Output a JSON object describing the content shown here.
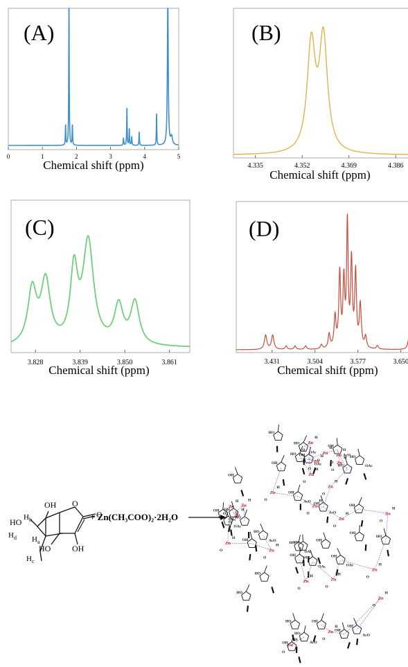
{
  "colors": {
    "A": "#3d8fd0",
    "B": "#e0b24a",
    "C": "#6fcf7a",
    "D": "#c94a3a",
    "frame": "#9a9a9a",
    "zn": "#cc2222",
    "ink": "#111111"
  },
  "chart_data": [
    {
      "panel": "A",
      "type": "line",
      "title": "(A)",
      "xlabel": "Chemical shift (ppm)",
      "ylabel": "",
      "xlim": [
        0,
        5
      ],
      "ylim": [
        0,
        1
      ],
      "xticks": [
        "0",
        "1",
        "2",
        "3",
        "4",
        "5"
      ],
      "xtick_values": [
        0,
        1,
        2,
        3,
        4,
        5
      ],
      "grid": false,
      "peaks": [
        {
          "x": 1.68,
          "h": 0.15,
          "w": 0.008
        },
        {
          "x": 1.78,
          "h": 1.1,
          "w": 0.008
        },
        {
          "x": 1.88,
          "h": 0.15,
          "w": 0.008
        },
        {
          "x": 3.38,
          "h": 0.05,
          "w": 0.01
        },
        {
          "x": 3.48,
          "h": 0.28,
          "w": 0.008
        },
        {
          "x": 3.55,
          "h": 0.12,
          "w": 0.008
        },
        {
          "x": 3.62,
          "h": 0.06,
          "w": 0.01
        },
        {
          "x": 3.84,
          "h": 0.1,
          "w": 0.008
        },
        {
          "x": 4.35,
          "h": 0.23,
          "w": 0.008
        },
        {
          "x": 4.68,
          "h": 1.1,
          "w": 0.015
        },
        {
          "x": 4.79,
          "h": 0.06,
          "w": 0.03
        }
      ]
    },
    {
      "panel": "B",
      "type": "line",
      "title": "(B)",
      "xlabel": "Chemical shift (ppm)",
      "ylabel": "",
      "xlim": [
        4.327,
        4.395
      ],
      "ylim": [
        0,
        1
      ],
      "xticks": [
        "4.335",
        "4.352",
        "4.369",
        "4.386"
      ],
      "xtick_values": [
        4.335,
        4.352,
        4.369,
        4.386
      ],
      "grid": false,
      "peaks": [
        {
          "x": 4.3553,
          "h": 0.7,
          "w": 0.0018
        },
        {
          "x": 4.3597,
          "h": 0.74,
          "w": 0.0018
        }
      ]
    },
    {
      "panel": "C",
      "type": "line",
      "title": "(C)",
      "xlabel": "Chemical shift (ppm)",
      "ylabel": "",
      "xlim": [
        3.822,
        3.866
      ],
      "ylim": [
        0,
        1
      ],
      "xticks": [
        "3.828",
        "3.839",
        "3.850",
        "3.861"
      ],
      "xtick_values": [
        3.828,
        3.839,
        3.85,
        3.861
      ],
      "grid": false,
      "peaks": [
        {
          "x": 3.8272,
          "h": 0.38,
          "w": 0.0013
        },
        {
          "x": 3.8305,
          "h": 0.44,
          "w": 0.0014
        },
        {
          "x": 3.8375,
          "h": 0.5,
          "w": 0.0011
        },
        {
          "x": 3.841,
          "h": 0.72,
          "w": 0.0016
        },
        {
          "x": 3.8485,
          "h": 0.27,
          "w": 0.0013
        },
        {
          "x": 3.8525,
          "h": 0.3,
          "w": 0.0013
        }
      ]
    },
    {
      "panel": "D",
      "type": "line",
      "title": "(D)",
      "xlabel": "Chemical shift (ppm)",
      "ylabel": "",
      "xlim": [
        3.37,
        3.688
      ],
      "ylim": [
        0,
        1
      ],
      "xticks": [
        "3.431",
        "3.504",
        "3.577",
        "3.650"
      ],
      "xtick_values": [
        3.431,
        3.504,
        3.577,
        3.65
      ],
      "grid": false,
      "peaks": [
        {
          "x": 3.42,
          "h": 0.1,
          "w": 0.0025
        },
        {
          "x": 3.432,
          "h": 0.1,
          "w": 0.0025
        },
        {
          "x": 3.455,
          "h": 0.025,
          "w": 0.002
        },
        {
          "x": 3.47,
          "h": 0.025,
          "w": 0.002
        },
        {
          "x": 3.488,
          "h": 0.025,
          "w": 0.002
        },
        {
          "x": 3.515,
          "h": 0.03,
          "w": 0.002
        },
        {
          "x": 3.528,
          "h": 0.1,
          "w": 0.002
        },
        {
          "x": 3.538,
          "h": 0.22,
          "w": 0.002
        },
        {
          "x": 3.546,
          "h": 0.52,
          "w": 0.0018
        },
        {
          "x": 3.553,
          "h": 0.46,
          "w": 0.0018
        },
        {
          "x": 3.559,
          "h": 0.86,
          "w": 0.0016
        },
        {
          "x": 3.566,
          "h": 0.6,
          "w": 0.0018
        },
        {
          "x": 3.573,
          "h": 0.52,
          "w": 0.0018
        },
        {
          "x": 3.581,
          "h": 0.3,
          "w": 0.002
        },
        {
          "x": 3.59,
          "h": 0.08,
          "w": 0.002
        },
        {
          "x": 3.61,
          "h": 0.025,
          "w": 0.002
        },
        {
          "x": 3.664,
          "h": 0.09,
          "w": 0.0025
        }
      ]
    }
  ],
  "scheme": {
    "reaction": "+ Zn(CH₃COO)₂·2H₂O",
    "reactant_labels": {
      "oh_top": "OH",
      "ho_left": "HO",
      "hb": "H",
      "hb_sub": "b",
      "hd": "H",
      "hd_sub": "d",
      "ha": "H",
      "ha_sub": "a",
      "hc": "H",
      "hc_sub": "c",
      "ring_o": "O",
      "carbonyl_o": "O",
      "ho_bottom": "HO",
      "oh_bottom": "OH"
    },
    "complex_labels": {
      "zn": "Zn",
      "ho": "HO",
      "oh": "OH",
      "oac": "OAc",
      "aco": "AcO",
      "h": "H",
      "o": "O"
    }
  }
}
